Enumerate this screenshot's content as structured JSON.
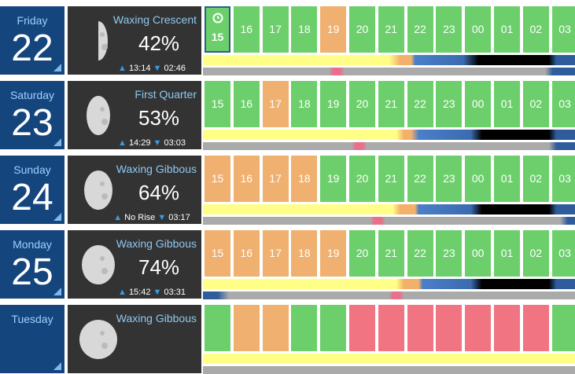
{
  "days": [
    {
      "day": "Friday",
      "date": "22",
      "phase": "Waxing Crescent",
      "illumination": "42%",
      "rise": "13:14",
      "set": "02:46",
      "hours": [
        "15",
        "16",
        "17",
        "18",
        "19",
        "20",
        "21",
        "22",
        "23",
        "00",
        "01",
        "02",
        "03"
      ],
      "colors": [
        "#6ccf6c",
        "#6ccf6c",
        "#6ccf6c",
        "#6ccf6c",
        "#efb070",
        "#6ccf6c",
        "#6ccf6c",
        "#6ccf6c",
        "#6ccf6c",
        "#6ccf6c",
        "#6ccf6c",
        "#6ccf6c",
        "#6ccf6c"
      ]
    },
    {
      "day": "Saturday",
      "date": "23",
      "phase": "First Quarter",
      "illumination": "53%",
      "rise": "14:29",
      "set": "03:03",
      "hours": [
        "15",
        "16",
        "17",
        "18",
        "19",
        "20",
        "21",
        "22",
        "23",
        "00",
        "01",
        "02",
        "03"
      ],
      "colors": [
        "#6ccf6c",
        "#6ccf6c",
        "#efb070",
        "#6ccf6c",
        "#6ccf6c",
        "#6ccf6c",
        "#6ccf6c",
        "#6ccf6c",
        "#6ccf6c",
        "#6ccf6c",
        "#6ccf6c",
        "#6ccf6c",
        "#6ccf6c"
      ]
    },
    {
      "day": "Sunday",
      "date": "24",
      "phase": "Waxing Gibbous",
      "illumination": "64%",
      "rise": "No Rise",
      "set": "03:17",
      "hours": [
        "15",
        "16",
        "17",
        "18",
        "19",
        "20",
        "21",
        "22",
        "23",
        "00",
        "01",
        "02",
        "03"
      ],
      "colors": [
        "#efb070",
        "#efb070",
        "#efb070",
        "#efb070",
        "#6ccf6c",
        "#6ccf6c",
        "#6ccf6c",
        "#6ccf6c",
        "#6ccf6c",
        "#6ccf6c",
        "#6ccf6c",
        "#6ccf6c",
        "#6ccf6c"
      ]
    },
    {
      "day": "Monday",
      "date": "25",
      "phase": "Waxing Gibbous",
      "illumination": "74%",
      "rise": "15:42",
      "set": "03:31",
      "hours": [
        "15",
        "16",
        "17",
        "18",
        "19",
        "20",
        "21",
        "22",
        "23",
        "00",
        "01",
        "02",
        "03"
      ],
      "colors": [
        "#efb070",
        "#efb070",
        "#efb070",
        "#efb070",
        "#efb070",
        "#6ccf6c",
        "#6ccf6c",
        "#6ccf6c",
        "#6ccf6c",
        "#6ccf6c",
        "#6ccf6c",
        "#6ccf6c",
        "#6ccf6c"
      ]
    },
    {
      "day": "Tuesday",
      "phase": "Waxing Gibbous",
      "colors": [
        "#6ccf6c",
        "#efb070",
        "#efb070",
        "#6ccf6c",
        "#6ccf6c",
        "#f07482",
        "#f07482",
        "#f07482",
        "#f07482",
        "#f07482",
        "#f07482",
        "#f07482",
        "#6ccf6c"
      ]
    }
  ]
}
